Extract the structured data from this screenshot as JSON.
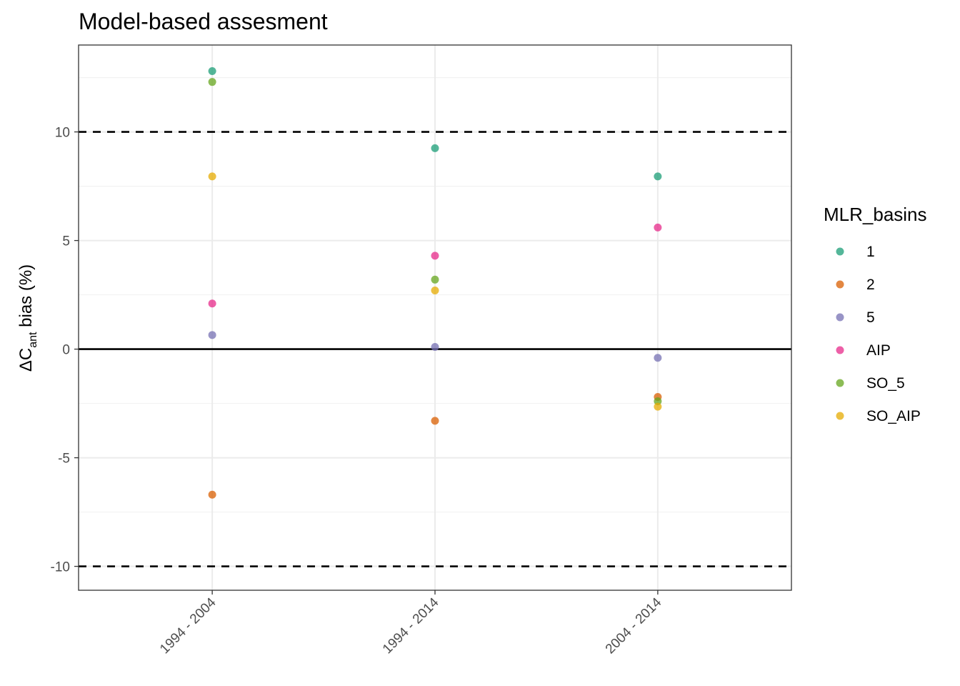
{
  "chart_data": {
    "type": "scatter",
    "title": "Model-based assesment",
    "ylabel": {
      "prefix": "ΔC",
      "subscript": "ant",
      "suffix": " bias (%)"
    },
    "xlabel": "",
    "categories": [
      "1994 - 2004",
      "1994 - 2014",
      "2004 - 2014"
    ],
    "ylim": [
      -11.1,
      14.0
    ],
    "yticks": [
      -10,
      -5,
      0,
      5,
      10
    ],
    "ytick_labels": [
      "-10",
      "-5",
      "0",
      "5",
      "10"
    ],
    "grid": true,
    "hlines": [
      {
        "y": 10,
        "style": "dashed"
      },
      {
        "y": -10,
        "style": "dashed"
      },
      {
        "y": 0,
        "style": "solid"
      }
    ],
    "legend": {
      "title": "MLR_basins",
      "position": "right"
    },
    "series": [
      {
        "name": "1",
        "color": "#1b9e77",
        "values": [
          12.8,
          9.25,
          7.95
        ]
      },
      {
        "name": "2",
        "color": "#d95f02",
        "values": [
          -6.7,
          -3.3,
          -2.2
        ]
      },
      {
        "name": "5",
        "color": "#7570b3",
        "values": [
          0.65,
          0.1,
          -0.4
        ]
      },
      {
        "name": "AIP",
        "color": "#e7298a",
        "values": [
          2.1,
          4.3,
          5.6
        ]
      },
      {
        "name": "SO_5",
        "color": "#66a61e",
        "values": [
          12.3,
          3.2,
          -2.4
        ]
      },
      {
        "name": "SO_AIP",
        "color": "#e6ab02",
        "values": [
          7.95,
          2.7,
          -2.65
        ]
      }
    ]
  }
}
